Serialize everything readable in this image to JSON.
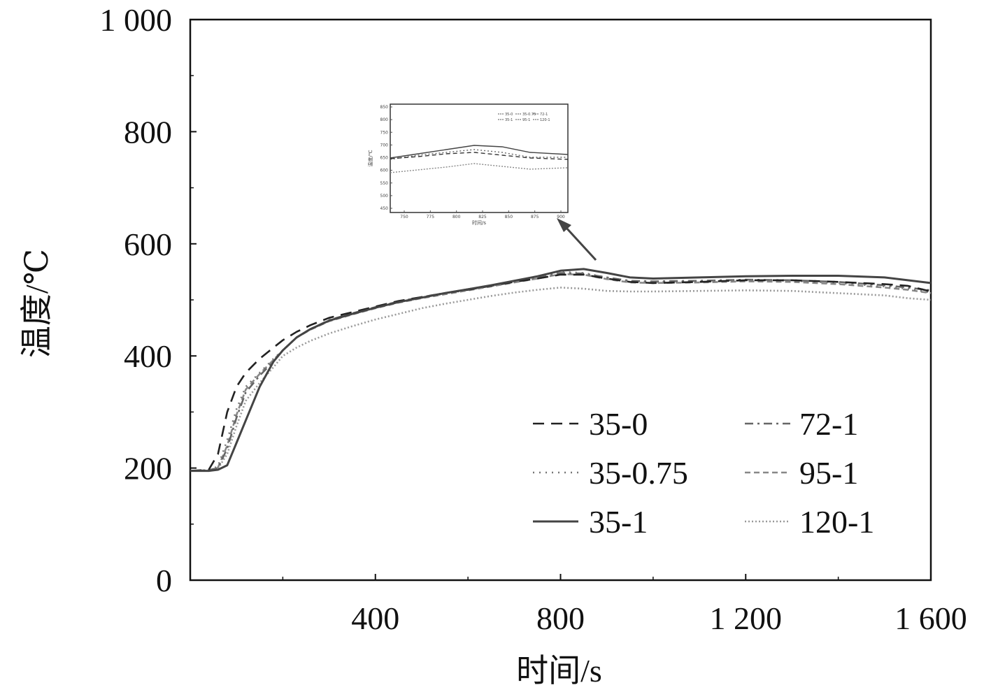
{
  "chart_data": {
    "type": "line",
    "title": "",
    "xlabel": "时间/s",
    "ylabel": "温度/℃",
    "xlim": [
      0,
      1600
    ],
    "ylim": [
      0,
      1000
    ],
    "x_ticks": [
      400,
      800,
      1200,
      1600
    ],
    "x_tick_labels": [
      "400",
      "800",
      "1 200",
      "1 600"
    ],
    "y_ticks": [
      0,
      200,
      400,
      600,
      800,
      1000
    ],
    "y_tick_labels": [
      "0",
      "200",
      "400",
      "600",
      "800",
      "1 000"
    ],
    "grid": false,
    "legend_placement": "bottom-right",
    "x": [
      0,
      40,
      60,
      80,
      100,
      120,
      150,
      180,
      200,
      230,
      260,
      300,
      350,
      400,
      450,
      500,
      550,
      600,
      650,
      700,
      750,
      800,
      850,
      900,
      950,
      1000,
      1100,
      1200,
      1300,
      1400,
      1500,
      1550,
      1600
    ],
    "series": [
      {
        "name": "35-0",
        "style": "dashed",
        "color": "#222222",
        "values": [
          195,
          197,
          225,
          300,
          345,
          370,
          395,
          415,
          428,
          443,
          455,
          468,
          478,
          488,
          498,
          505,
          512,
          518,
          525,
          532,
          538,
          545,
          545,
          538,
          532,
          530,
          532,
          535,
          535,
          532,
          528,
          525,
          515
        ]
      },
      {
        "name": "35-0.75",
        "style": "dotted",
        "color": "#777777",
        "values": [
          195,
          196,
          203,
          250,
          305,
          345,
          370,
          395,
          410,
          433,
          448,
          463,
          475,
          486,
          496,
          504,
          511,
          518,
          525,
          532,
          540,
          550,
          548,
          540,
          533,
          532,
          533,
          535,
          534,
          530,
          524,
          520,
          513
        ]
      },
      {
        "name": "35-1",
        "style": "solid",
        "color": "#444444",
        "values": [
          195,
          195,
          197,
          205,
          245,
          285,
          345,
          390,
          410,
          433,
          448,
          463,
          475,
          486,
          496,
          504,
          512,
          519,
          526,
          534,
          542,
          552,
          555,
          548,
          540,
          538,
          540,
          542,
          543,
          543,
          540,
          535,
          530
        ]
      },
      {
        "name": "72-1",
        "style": "dashdot",
        "color": "#666666",
        "values": [
          195,
          196,
          200,
          235,
          290,
          335,
          365,
          390,
          410,
          433,
          448,
          464,
          476,
          487,
          497,
          505,
          512,
          519,
          526,
          533,
          540,
          548,
          547,
          540,
          534,
          533,
          534,
          536,
          535,
          532,
          526,
          522,
          517
        ]
      },
      {
        "name": "95-1",
        "style": "shortdash",
        "color": "#888888",
        "values": [
          195,
          196,
          201,
          240,
          295,
          340,
          368,
          393,
          410,
          433,
          447,
          462,
          474,
          485,
          495,
          503,
          510,
          517,
          524,
          531,
          538,
          546,
          545,
          537,
          531,
          530,
          531,
          533,
          532,
          528,
          522,
          518,
          512
        ]
      },
      {
        "name": "120-1",
        "style": "dotted-fine",
        "color": "#9a9a9a",
        "values": [
          195,
          196,
          199,
          225,
          275,
          320,
          352,
          380,
          400,
          415,
          427,
          440,
          453,
          465,
          475,
          485,
          493,
          500,
          507,
          513,
          518,
          522,
          520,
          516,
          515,
          515,
          516,
          517,
          516,
          512,
          508,
          503,
          500
        ]
      }
    ],
    "inset": {
      "ylabel": "温度/℃",
      "xlabel": "时间/s",
      "x_tick_labels": [
        "750",
        "775",
        "800",
        "825",
        "850",
        "875",
        "900"
      ],
      "y_tick_labels": [
        "850",
        "800",
        "750",
        "700",
        "650",
        "600",
        "550",
        "500",
        "450"
      ],
      "legend": [
        "35-0",
        "35-0.75",
        "72-1",
        "35-1",
        "95-1",
        "120-1"
      ]
    }
  }
}
